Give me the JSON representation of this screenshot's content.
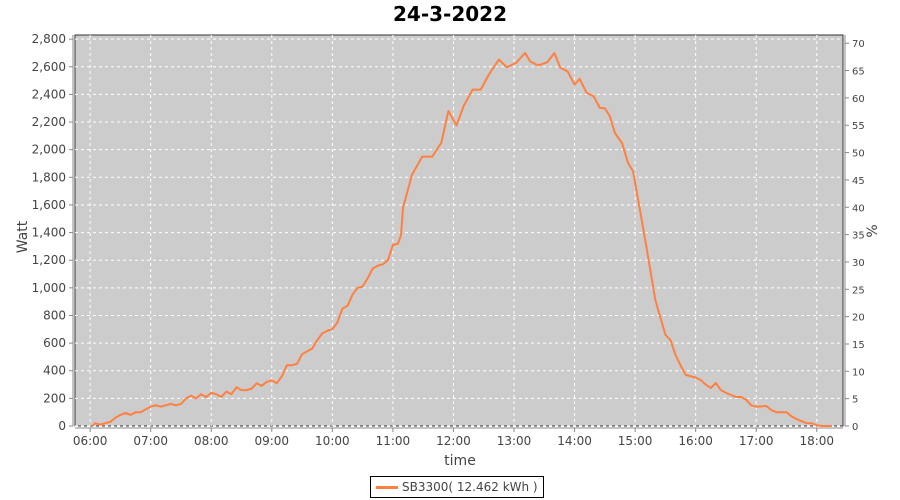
{
  "chart_data": {
    "type": "line",
    "title": "24-3-2022",
    "xlabel": "time",
    "ylabel": "Watt",
    "y2label": "%",
    "xlim": [
      "05:45",
      "18:26"
    ],
    "ylim": [
      0,
      2830
    ],
    "y2lim": [
      0,
      71.5
    ],
    "x_ticks": [
      "06:00",
      "07:00",
      "08:00",
      "09:00",
      "10:00",
      "11:00",
      "12:00",
      "13:00",
      "14:00",
      "15:00",
      "16:00",
      "17:00",
      "18:00"
    ],
    "y_ticks": [
      "0",
      "200",
      "400",
      "600",
      "800",
      "1,000",
      "1,200",
      "1,400",
      "1,600",
      "1,800",
      "2,000",
      "2,200",
      "2,400",
      "2,600",
      "2,800"
    ],
    "y2_ticks": [
      "0",
      "5",
      "10",
      "15",
      "20",
      "25",
      "30",
      "35",
      "40",
      "45",
      "50",
      "55",
      "60",
      "65",
      "70"
    ],
    "grid": true,
    "legend_position": "bottom",
    "plot_background": "#cccccc",
    "series": [
      {
        "name": "SB3300( 12.462 kWh )",
        "color": "#ff8040",
        "x": [
          "06:02",
          "06:05",
          "06:10",
          "06:15",
          "06:20",
          "06:25",
          "06:30",
          "06:35",
          "06:40",
          "06:45",
          "06:50",
          "06:55",
          "07:00",
          "07:05",
          "07:10",
          "07:15",
          "07:20",
          "07:25",
          "07:30",
          "07:35",
          "07:40",
          "07:45",
          "07:50",
          "07:55",
          "08:00",
          "08:05",
          "08:10",
          "08:15",
          "08:20",
          "08:25",
          "08:30",
          "08:35",
          "08:40",
          "08:45",
          "08:50",
          "08:55",
          "09:00",
          "09:05",
          "09:10",
          "09:15",
          "09:20",
          "09:25",
          "09:30",
          "09:35",
          "09:40",
          "09:45",
          "09:50",
          "09:55",
          "10:00",
          "10:05",
          "10:10",
          "10:15",
          "10:20",
          "10:25",
          "10:30",
          "10:35",
          "10:40",
          "10:45",
          "10:50",
          "10:55",
          "11:00",
          "11:05",
          "11:08",
          "11:10",
          "11:19",
          "11:29",
          "11:39",
          "11:48",
          "11:55",
          "12:03",
          "12:10",
          "12:19",
          "12:27",
          "12:35",
          "12:45",
          "12:53",
          "13:02",
          "13:11",
          "13:16",
          "13:24",
          "13:33",
          "13:40",
          "13:46",
          "13:53",
          "14:00",
          "14:05",
          "14:12",
          "14:19",
          "14:25",
          "14:30",
          "14:35",
          "14:40",
          "14:47",
          "14:53",
          "14:58",
          "15:03",
          "15:10",
          "15:20",
          "15:30",
          "15:35",
          "15:40",
          "15:45",
          "15:50",
          "16:00",
          "16:05",
          "16:10",
          "16:15",
          "16:20",
          "16:25",
          "16:30",
          "16:35",
          "16:40",
          "16:45",
          "16:50",
          "16:55",
          "17:00",
          "17:10",
          "17:15",
          "17:20",
          "17:30",
          "17:35",
          "17:40",
          "17:45",
          "17:50",
          "17:55",
          "18:00",
          "18:05",
          "18:15"
        ],
        "values": [
          0,
          20,
          10,
          20,
          30,
          60,
          80,
          95,
          80,
          100,
          100,
          120,
          140,
          150,
          140,
          150,
          160,
          150,
          160,
          200,
          220,
          200,
          230,
          210,
          240,
          230,
          210,
          250,
          230,
          280,
          260,
          260,
          270,
          310,
          290,
          320,
          330,
          310,
          360,
          440,
          440,
          450,
          520,
          540,
          560,
          620,
          670,
          690,
          700,
          750,
          850,
          870,
          950,
          1000,
          1010,
          1070,
          1140,
          1160,
          1170,
          1200,
          1310,
          1320,
          1380,
          1580,
          1820,
          1950,
          1950,
          2050,
          2280,
          2176,
          2314,
          2435,
          2435,
          2543,
          2652,
          2597,
          2628,
          2700,
          2640,
          2609,
          2633,
          2700,
          2592,
          2567,
          2471,
          2512,
          2411,
          2386,
          2302,
          2300,
          2241,
          2121,
          2048,
          1904,
          1843,
          1638,
          1348,
          913,
          660,
          623,
          515,
          440,
          370,
          350,
          333,
          300,
          275,
          311,
          260,
          240,
          225,
          210,
          210,
          190,
          150,
          140,
          145,
          115,
          100,
          100,
          70,
          50,
          35,
          20,
          20,
          5,
          0,
          0
        ]
      }
    ]
  }
}
